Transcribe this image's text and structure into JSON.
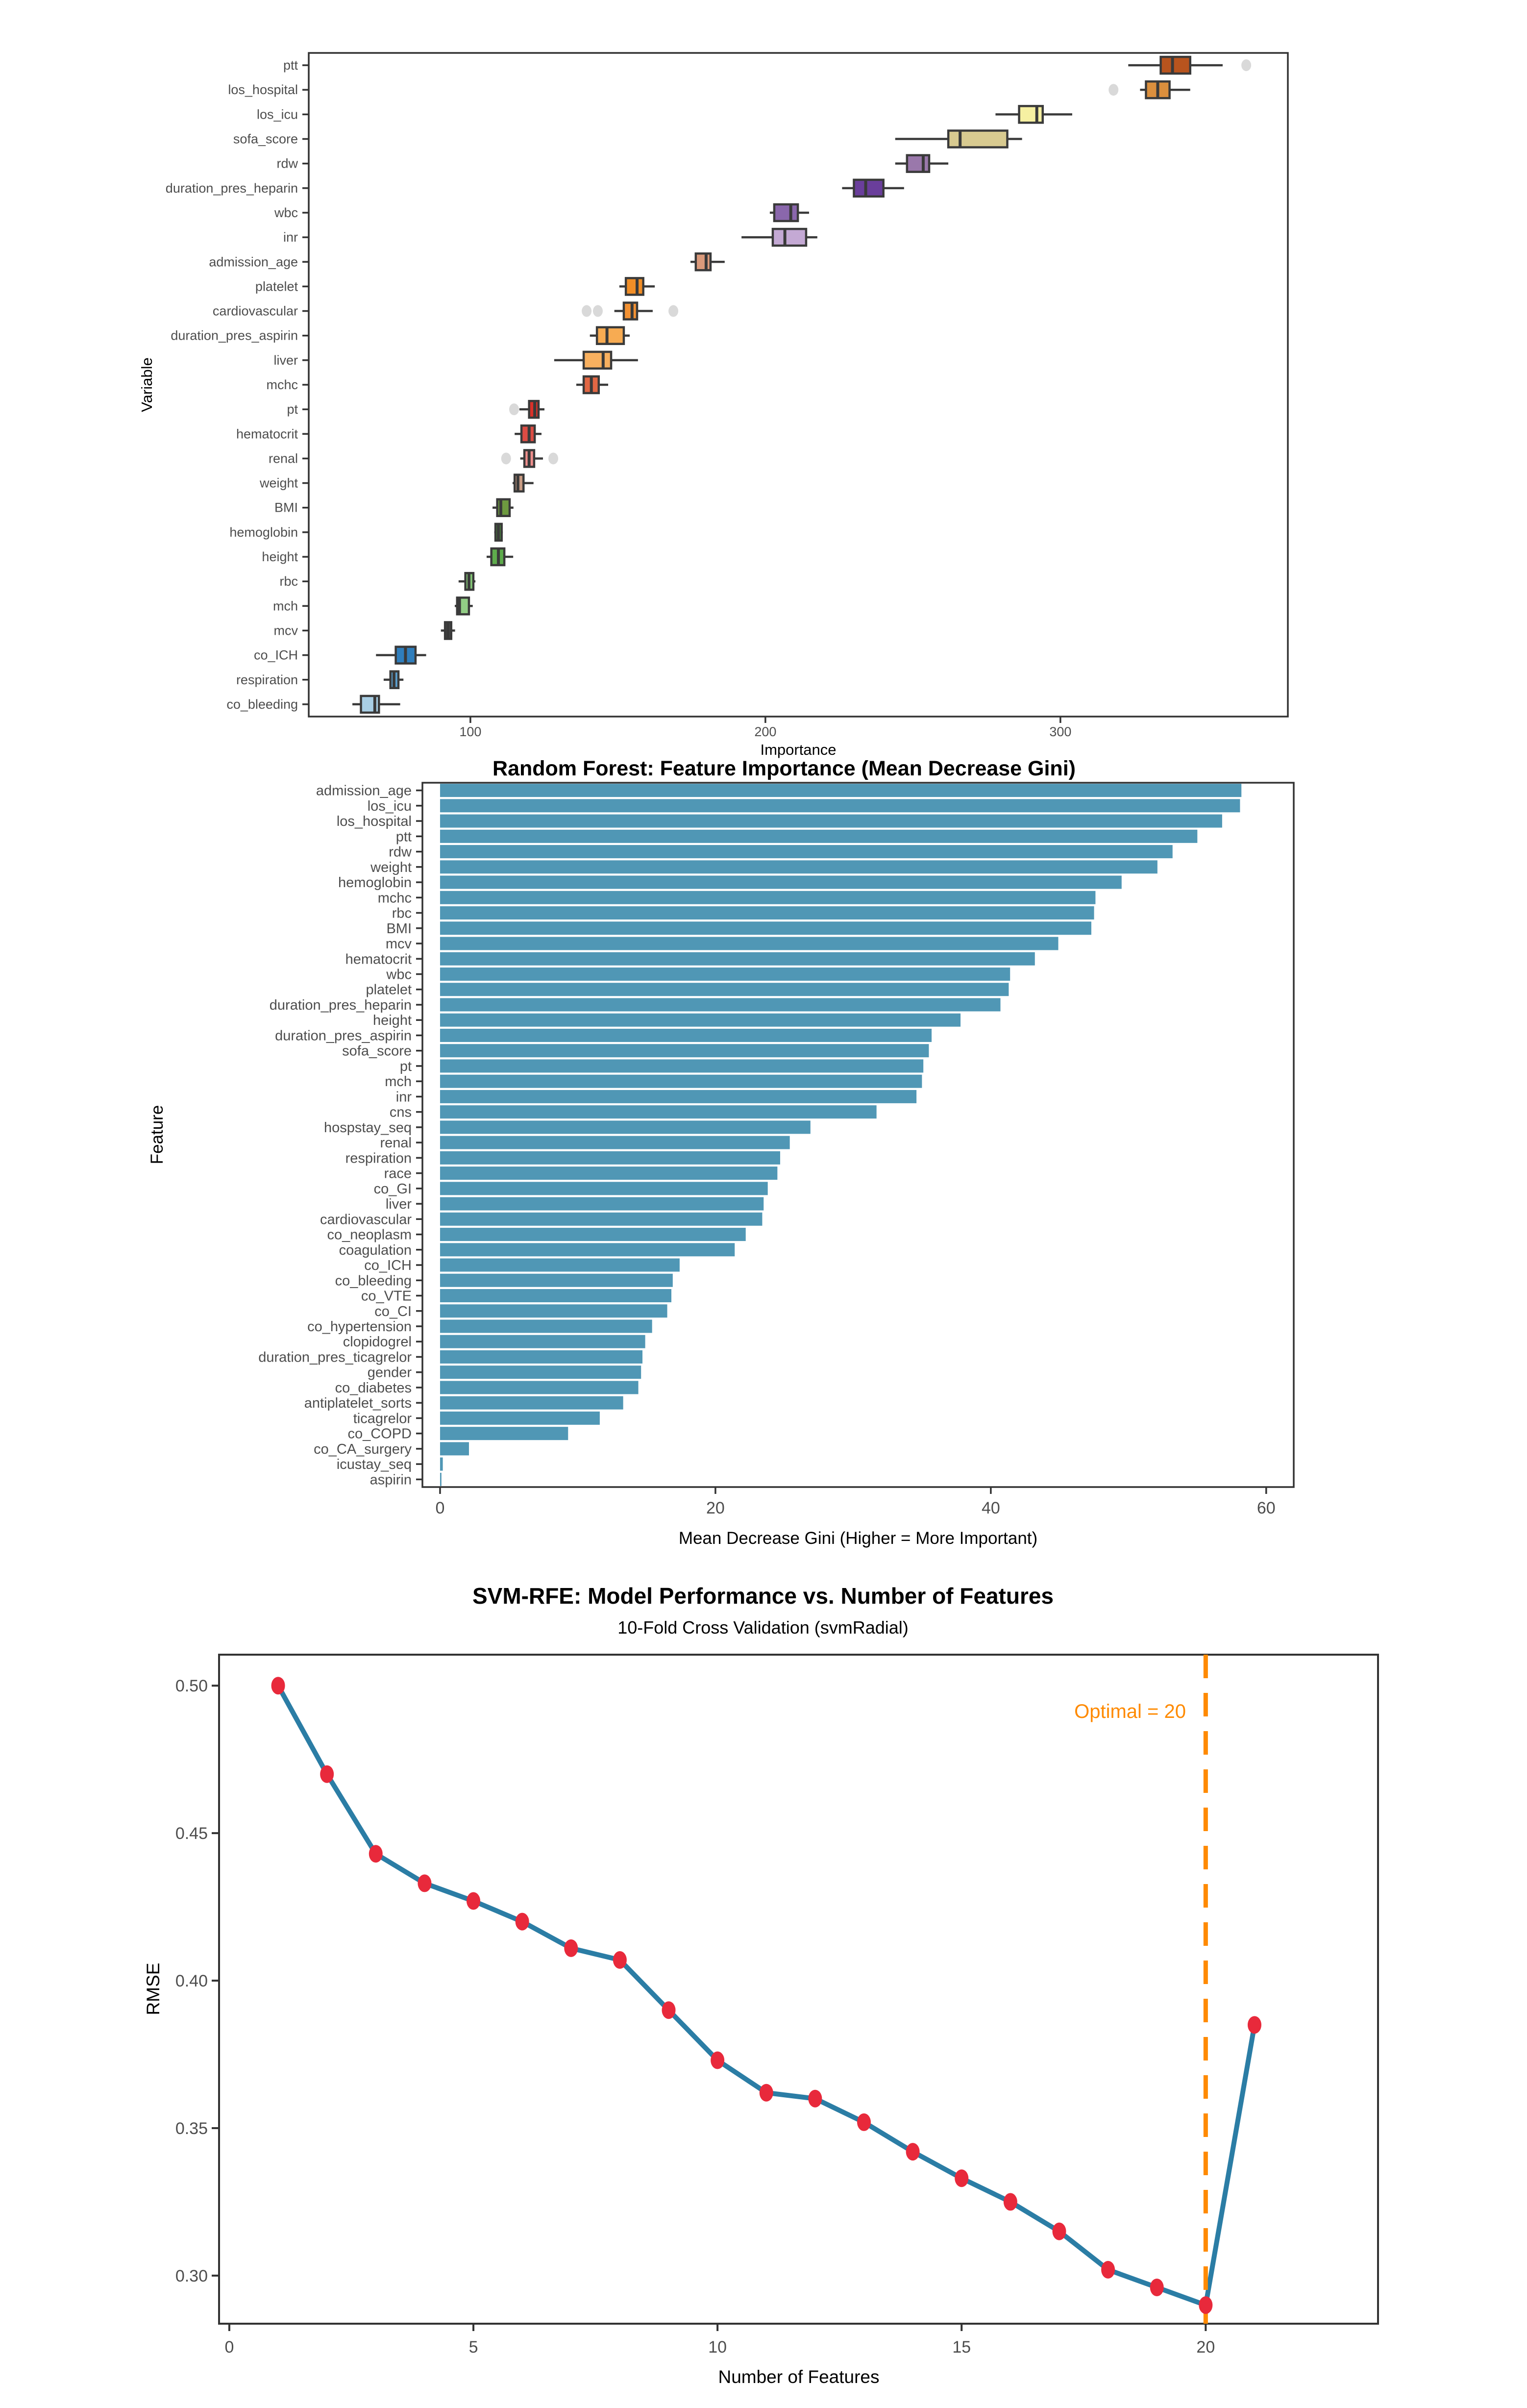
{
  "page": {
    "background": "#ffffff"
  },
  "chart_data": [
    {
      "type": "boxplot",
      "orientation": "horizontal",
      "xlabel": "Importance",
      "ylabel": "Variable",
      "xlim": [
        45.2,
        377.1
      ],
      "x_ticks": [
        100,
        200,
        300
      ],
      "x_tick_labels": [
        "100",
        "200",
        "300"
      ],
      "box_outline_color": "#3a3a3a",
      "outlier_color": "#d9d9d9",
      "boxes": [
        {
          "label": "ptt",
          "color": "#b8541e",
          "whisker_lo": 323,
          "q1": 334,
          "median": 338,
          "q3": 344,
          "whisker_hi": 355,
          "outliers": [
            363
          ]
        },
        {
          "label": "los_hospital",
          "color": "#db8f3d",
          "whisker_lo": 327,
          "q1": 329,
          "median": 333,
          "q3": 337,
          "whisker_hi": 344,
          "outliers": [
            318
          ]
        },
        {
          "label": "los_icu",
          "color": "#f6f0a2",
          "whisker_lo": 278,
          "q1": 286,
          "median": 292,
          "q3": 294,
          "whisker_hi": 304,
          "outliers": []
        },
        {
          "label": "sofa_score",
          "color": "#d8ca90",
          "whisker_lo": 244,
          "q1": 262,
          "median": 266,
          "q3": 282,
          "whisker_hi": 287,
          "outliers": []
        },
        {
          "label": "rdw",
          "color": "#9a78ab",
          "whisker_lo": 244,
          "q1": 248,
          "median": 253.5,
          "q3": 255.5,
          "whisker_hi": 262,
          "outliers": []
        },
        {
          "label": "duration_pres_heparin",
          "color": "#6a3e9b",
          "whisker_lo": 226,
          "q1": 230,
          "median": 234,
          "q3": 240,
          "whisker_hi": 247,
          "outliers": []
        },
        {
          "label": "wbc",
          "color": "#8a67ac",
          "whisker_lo": 201.5,
          "q1": 203,
          "median": 208.6,
          "q3": 211,
          "whisker_hi": 214.8,
          "outliers": []
        },
        {
          "label": "inr",
          "color": "#c4a9d4",
          "whisker_lo": 191.9,
          "q1": 202.5,
          "median": 206.6,
          "q3": 213.8,
          "whisker_hi": 217.6,
          "outliers": []
        },
        {
          "label": "admission_age",
          "color": "#db9a7b",
          "whisker_lo": 174.6,
          "q1": 176.4,
          "median": 179.9,
          "q3": 181.4,
          "whisker_hi": 186.2,
          "outliers": []
        },
        {
          "label": "platelet",
          "color": "#f18e27",
          "whisker_lo": 150.5,
          "q1": 152.7,
          "median": 156.5,
          "q3": 158.6,
          "whisker_hi": 162.5,
          "outliers": []
        },
        {
          "label": "cardiovascular",
          "color": "#f29133",
          "whisker_lo": 148.8,
          "q1": 152,
          "median": 154.8,
          "q3": 156.5,
          "whisker_hi": 161.8,
          "outliers": [
            139.4,
            143.2,
            168.8
          ]
        },
        {
          "label": "duration_pres_aspirin",
          "color": "#f7ab52",
          "whisker_lo": 140.5,
          "q1": 142.9,
          "median": 146.3,
          "q3": 152,
          "whisker_hi": 154,
          "outliers": []
        },
        {
          "label": "liver",
          "color": "#f8b05f",
          "whisker_lo": 128.4,
          "q1": 138.4,
          "median": 145,
          "q3": 147.7,
          "whisker_hi": 156.8,
          "outliers": []
        },
        {
          "label": "mchc",
          "color": "#e26744",
          "whisker_lo": 135.9,
          "q1": 138.4,
          "median": 141,
          "q3": 143.5,
          "whisker_hi": 146.7,
          "outliers": []
        },
        {
          "label": "pt",
          "color": "#d93129",
          "whisker_lo": 116.6,
          "q1": 119.9,
          "median": 121.8,
          "q3": 123.1,
          "whisker_hi": 125.1,
          "outliers": [
            114.8
          ]
        },
        {
          "label": "hematocrit",
          "color": "#dc4c44",
          "whisker_lo": 115,
          "q1": 117.3,
          "median": 119.9,
          "q3": 121.8,
          "whisker_hi": 124.1,
          "outliers": []
        },
        {
          "label": "renal",
          "color": "#ef8e8c",
          "whisker_lo": 116.9,
          "q1": 118.3,
          "median": 119.9,
          "q3": 121.6,
          "whisker_hi": 124.6,
          "outliers": [
            112.1,
            128.1
          ]
        },
        {
          "label": "weight",
          "color": "#c79b83",
          "whisker_lo": 114.3,
          "q1": 115,
          "median": 116.1,
          "q3": 118,
          "whisker_hi": 121.4,
          "outliers": []
        },
        {
          "label": "BMI",
          "color": "#6e9a40",
          "whisker_lo": 107.5,
          "q1": 109.1,
          "median": 110.3,
          "q3": 113.3,
          "whisker_hi": 114.6,
          "outliers": []
        },
        {
          "label": "hemoglobin",
          "color": "#4a8f3c",
          "whisker_lo": 108.1,
          "q1": 108.5,
          "median": 109.5,
          "q3": 110.6,
          "whisker_hi": 111,
          "outliers": []
        },
        {
          "label": "height",
          "color": "#5eac4c",
          "whisker_lo": 105.5,
          "q1": 107.1,
          "median": 109.5,
          "q3": 111.5,
          "whisker_hi": 114.5,
          "outliers": []
        },
        {
          "label": "rbc",
          "color": "#86c878",
          "whisker_lo": 96,
          "q1": 98.3,
          "median": 99.5,
          "q3": 101,
          "whisker_hi": 101.7,
          "outliers": []
        },
        {
          "label": "mch",
          "color": "#92cd85",
          "whisker_lo": 94.7,
          "q1": 95.5,
          "median": 96.3,
          "q3": 99.5,
          "whisker_hi": 100.8,
          "outliers": []
        },
        {
          "label": "mcv",
          "color": "#4a4a4a",
          "whisker_lo": 90,
          "q1": 91.4,
          "median": 92.4,
          "q3": 93.5,
          "whisker_hi": 94.8,
          "outliers": []
        },
        {
          "label": "co_ICH",
          "color": "#2f7ebc",
          "whisker_lo": 68,
          "q1": 74.7,
          "median": 78,
          "q3": 81.4,
          "whisker_hi": 85,
          "outliers": []
        },
        {
          "label": "respiration",
          "color": "#5c9fce",
          "whisker_lo": 70.6,
          "q1": 72.9,
          "median": 74.1,
          "q3": 75.6,
          "whisker_hi": 77.3,
          "outliers": []
        },
        {
          "label": "co_bleeding",
          "color": "#a9cfe5",
          "whisker_lo": 60,
          "q1": 62.9,
          "median": 67.6,
          "q3": 69,
          "whisker_hi": 76.2,
          "outliers": []
        }
      ]
    },
    {
      "type": "bar",
      "orientation": "horizontal",
      "title": "Random Forest: Feature Importance (Mean Decrease Gini)",
      "xlabel": "Mean Decrease Gini (Higher = More Important)",
      "ylabel": "Feature",
      "bar_color": "#5097b5",
      "xlim": [
        -1.28,
        62
      ],
      "x_ticks": [
        0,
        20,
        40,
        60
      ],
      "x_tick_labels": [
        "0",
        "20",
        "40",
        "60"
      ],
      "categories": [
        "admission_age",
        "los_icu",
        "los_hospital",
        "ptt",
        "rdw",
        "weight",
        "hemoglobin",
        "mchc",
        "rbc",
        "BMI",
        "mcv",
        "hematocrit",
        "wbc",
        "platelet",
        "duration_pres_heparin",
        "height",
        "duration_pres_aspirin",
        "sofa_score",
        "pt",
        "mch",
        "inr",
        "cns",
        "hospstay_seq",
        "renal",
        "respiration",
        "race",
        "co_GI",
        "liver",
        "cardiovascular",
        "co_neoplasm",
        "coagulation",
        "co_ICH",
        "co_bleeding",
        "co_VTE",
        "co_CI",
        "co_hypertension",
        "clopidogrel",
        "duration_pres_ticagrelor",
        "gender",
        "co_diabetes",
        "antiplatelet_sorts",
        "ticagrelor",
        "co_COPD",
        "co_CA_surgery",
        "icustay_seq",
        "aspirin"
      ],
      "values": [
        58.2,
        58.1,
        56.8,
        55.0,
        53.2,
        52.1,
        49.5,
        47.6,
        47.5,
        47.3,
        44.9,
        43.2,
        41.4,
        41.3,
        40.7,
        37.8,
        35.7,
        35.5,
        35.1,
        35.0,
        34.6,
        31.7,
        26.9,
        25.4,
        24.7,
        24.5,
        23.8,
        23.5,
        23.4,
        22.2,
        21.4,
        17.4,
        16.9,
        16.8,
        16.5,
        15.4,
        14.9,
        14.7,
        14.6,
        14.4,
        13.3,
        11.6,
        9.3,
        2.1,
        0.2,
        0.1
      ]
    },
    {
      "type": "line",
      "title": "SVM-RFE: Model Performance vs. Number of Features",
      "subtitle": "10-Fold Cross Validation (svmRadial)",
      "xlabel": "Number of Features",
      "ylabel": "RMSE",
      "line_color": "#2b7da5",
      "point_color": "#e8293b",
      "optimal_color": "#ff8a00",
      "optimal_label": "Optimal = 20",
      "optimal_x": 20,
      "xlim": [
        -0.21,
        23.53
      ],
      "ylim": [
        0.2837,
        0.5105
      ],
      "x_ticks": [
        0,
        5,
        10,
        15,
        20
      ],
      "x_tick_labels": [
        "0",
        "5",
        "10",
        "15",
        "20"
      ],
      "y_ticks": [
        0.3,
        0.35,
        0.4,
        0.45,
        0.5
      ],
      "y_tick_labels": [
        "0.30",
        "0.35",
        "0.40",
        "0.45",
        "0.50"
      ],
      "x": [
        1,
        2,
        3,
        4,
        5,
        6,
        7,
        8,
        9,
        10,
        11,
        12,
        13,
        14,
        15,
        16,
        17,
        18,
        19,
        20,
        21
      ],
      "y": [
        0.5,
        0.47,
        0.443,
        0.433,
        0.427,
        0.42,
        0.411,
        0.407,
        0.39,
        0.373,
        0.362,
        0.36,
        0.352,
        0.342,
        0.333,
        0.325,
        0.315,
        0.302,
        0.296,
        0.29,
        0.385
      ]
    }
  ]
}
